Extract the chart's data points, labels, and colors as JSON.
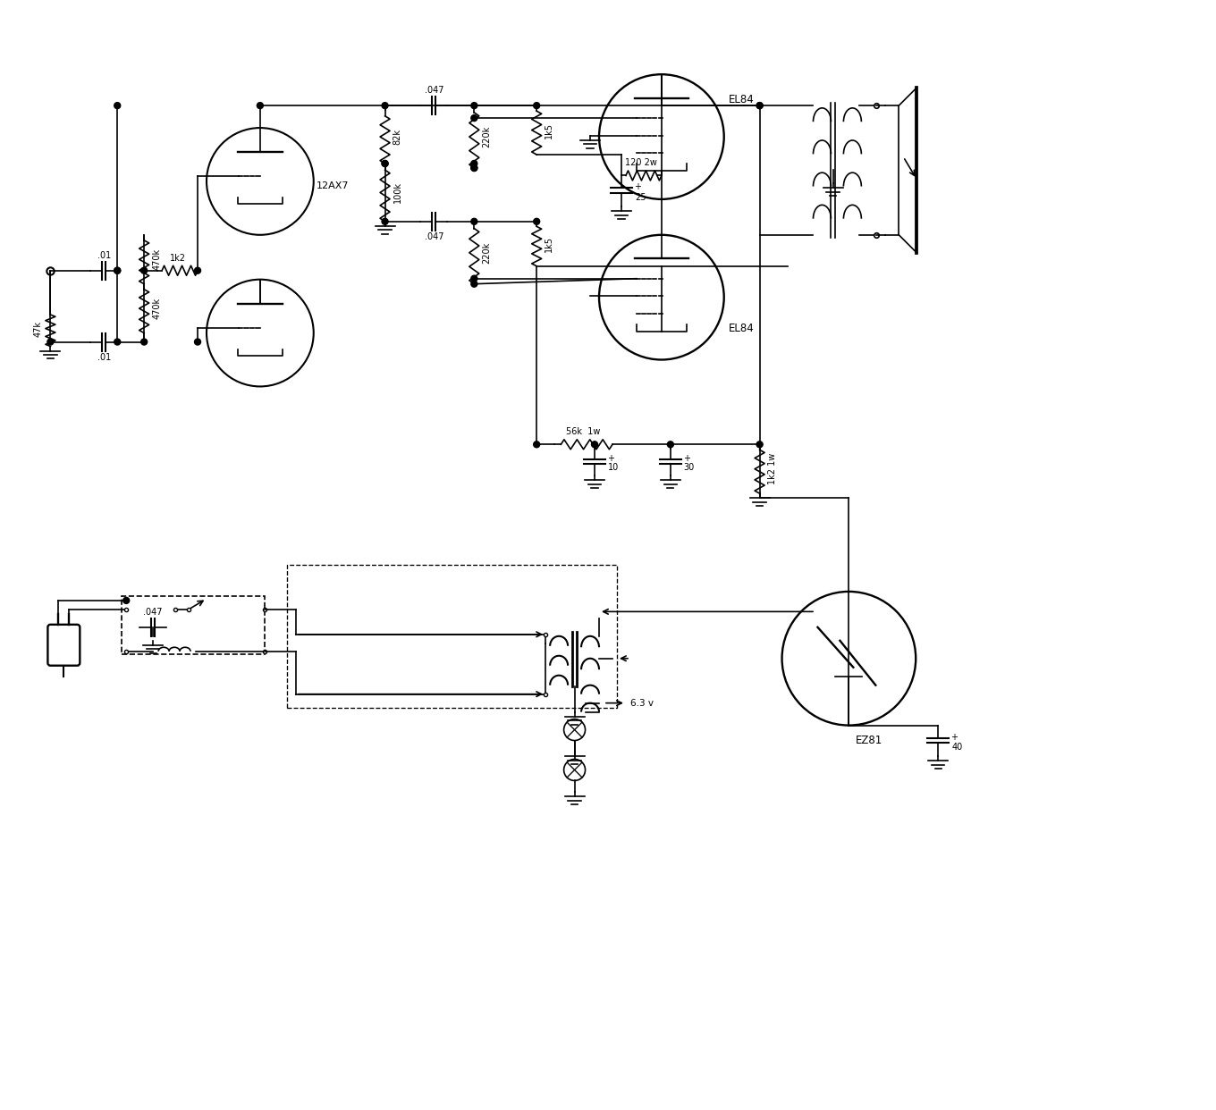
{
  "bg_color": "#ffffff",
  "line_color": "#000000",
  "figsize": [
    13.6,
    12.42
  ],
  "dpi": 100,
  "labels": {
    "cap01_top": ".01",
    "cap01_bot": ".01",
    "r470k_top": "470k",
    "r470k_bot": "470k",
    "r1k2": "1k2",
    "r47k": "47k",
    "tube1": "12AX7",
    "r82k": "82k",
    "r100k": "100k",
    "cap047_top": ".047",
    "cap047_bot": ".047",
    "r220k_top": "220k",
    "r220k_bot": "220k",
    "r1k5_top": "1k5",
    "r1k5_bot": "1k5",
    "tube2": "EL84",
    "tube3": "EL84",
    "r120": "120 2w",
    "c25": "25",
    "r56k": "56k  1w",
    "r1k2_1w": "1k2 1w",
    "c10": "10",
    "c30": "30",
    "cap047_ps": ".047",
    "c40": "40",
    "tube4": "EZ81",
    "v63": "6.3 v"
  }
}
